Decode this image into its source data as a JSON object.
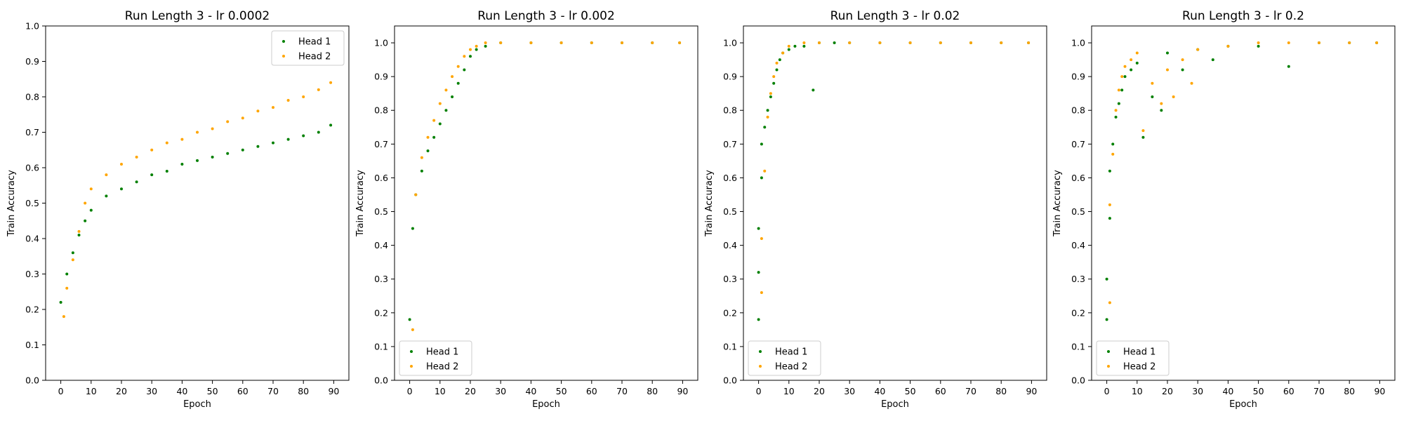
{
  "figure": {
    "background": "#ffffff"
  },
  "colors": {
    "head1": "#008000",
    "head2": "#ffa500"
  },
  "chart_data": [
    {
      "type": "scatter",
      "title": "Run Length 3 - lr 0.0002",
      "xlabel": "Epoch",
      "ylabel": "Train Accuracy",
      "xlim": [
        -5,
        95
      ],
      "ylim": [
        0,
        1
      ],
      "xticks": [
        0,
        10,
        20,
        30,
        40,
        50,
        60,
        70,
        80,
        90
      ],
      "yticks": [
        0.0,
        0.1,
        0.2,
        0.3,
        0.4,
        0.5,
        0.6,
        0.7,
        0.8,
        0.9,
        1.0
      ],
      "legend": {
        "position": "top-right",
        "entries": [
          "Head 1",
          "Head 2"
        ]
      },
      "series": [
        {
          "name": "Head 1",
          "color": "#008000",
          "x": [
            0,
            2,
            4,
            6,
            8,
            10,
            15,
            20,
            25,
            30,
            35,
            40,
            45,
            50,
            55,
            60,
            65,
            70,
            75,
            80,
            85,
            89
          ],
          "y": [
            0.22,
            0.3,
            0.36,
            0.41,
            0.45,
            0.48,
            0.52,
            0.54,
            0.56,
            0.58,
            0.59,
            0.61,
            0.62,
            0.63,
            0.64,
            0.65,
            0.66,
            0.67,
            0.68,
            0.69,
            0.7,
            0.72
          ]
        },
        {
          "name": "Head 2",
          "color": "#ffa500",
          "x": [
            1,
            2,
            4,
            6,
            8,
            10,
            15,
            20,
            25,
            30,
            35,
            40,
            45,
            50,
            55,
            60,
            65,
            70,
            75,
            80,
            85,
            89
          ],
          "y": [
            0.18,
            0.26,
            0.34,
            0.42,
            0.5,
            0.54,
            0.58,
            0.61,
            0.63,
            0.65,
            0.67,
            0.68,
            0.7,
            0.71,
            0.73,
            0.74,
            0.76,
            0.77,
            0.79,
            0.8,
            0.82,
            0.84
          ]
        }
      ]
    },
    {
      "type": "scatter",
      "title": "Run Length 3 - lr 0.002",
      "xlabel": "Epoch",
      "ylabel": "Train Accuracy",
      "xlim": [
        -5,
        95
      ],
      "ylim": [
        0,
        1.05
      ],
      "xticks": [
        0,
        10,
        20,
        30,
        40,
        50,
        60,
        70,
        80,
        90
      ],
      "yticks": [
        0.0,
        0.1,
        0.2,
        0.3,
        0.4,
        0.5,
        0.6,
        0.7,
        0.8,
        0.9,
        1.0
      ],
      "legend": {
        "position": "bottom-left",
        "entries": [
          "Head 1",
          "Head 2"
        ]
      },
      "series": [
        {
          "name": "Head 1",
          "color": "#008000",
          "x": [
            0,
            1,
            2,
            4,
            6,
            8,
            10,
            12,
            14,
            16,
            18,
            20,
            22,
            25,
            30,
            40,
            50,
            60,
            70,
            80,
            89
          ],
          "y": [
            0.18,
            0.45,
            0.55,
            0.62,
            0.68,
            0.72,
            0.76,
            0.8,
            0.84,
            0.88,
            0.92,
            0.96,
            0.98,
            0.99,
            1.0,
            1.0,
            1.0,
            1.0,
            1.0,
            1.0,
            1.0
          ]
        },
        {
          "name": "Head 2",
          "color": "#ffa500",
          "x": [
            1,
            2,
            4,
            6,
            8,
            10,
            12,
            14,
            16,
            18,
            20,
            22,
            25,
            30,
            40,
            50,
            60,
            70,
            80,
            89
          ],
          "y": [
            0.15,
            0.55,
            0.66,
            0.72,
            0.77,
            0.82,
            0.86,
            0.9,
            0.93,
            0.96,
            0.98,
            0.99,
            1.0,
            1.0,
            1.0,
            1.0,
            1.0,
            1.0,
            1.0,
            1.0
          ]
        }
      ]
    },
    {
      "type": "scatter",
      "title": "Run Length 3 - lr 0.02",
      "xlabel": "Epoch",
      "ylabel": "Train Accuracy",
      "xlim": [
        -5,
        95
      ],
      "ylim": [
        0,
        1.05
      ],
      "xticks": [
        0,
        10,
        20,
        30,
        40,
        50,
        60,
        70,
        80,
        90
      ],
      "yticks": [
        0.0,
        0.1,
        0.2,
        0.3,
        0.4,
        0.5,
        0.6,
        0.7,
        0.8,
        0.9,
        1.0
      ],
      "legend": {
        "position": "bottom-left",
        "entries": [
          "Head 1",
          "Head 2"
        ]
      },
      "series": [
        {
          "name": "Head 1",
          "color": "#008000",
          "x": [
            0,
            0,
            0,
            1,
            1,
            2,
            3,
            4,
            5,
            6,
            7,
            8,
            10,
            12,
            15,
            18,
            20,
            25,
            30,
            40,
            50,
            60,
            70,
            80,
            89
          ],
          "y": [
            0.18,
            0.32,
            0.45,
            0.6,
            0.7,
            0.75,
            0.8,
            0.84,
            0.88,
            0.92,
            0.95,
            0.97,
            0.98,
            0.99,
            0.99,
            0.86,
            1.0,
            1.0,
            1.0,
            1.0,
            1.0,
            1.0,
            1.0,
            1.0,
            1.0
          ]
        },
        {
          "name": "Head 2",
          "color": "#ffa500",
          "x": [
            1,
            1,
            2,
            3,
            4,
            5,
            6,
            8,
            10,
            15,
            20,
            30,
            40,
            50,
            60,
            70,
            80,
            89
          ],
          "y": [
            0.26,
            0.42,
            0.62,
            0.78,
            0.85,
            0.9,
            0.94,
            0.97,
            0.99,
            1.0,
            1.0,
            1.0,
            1.0,
            1.0,
            1.0,
            1.0,
            1.0,
            1.0
          ]
        }
      ]
    },
    {
      "type": "scatter",
      "title": "Run Length 3 - lr 0.2",
      "xlabel": "Epoch",
      "ylabel": "Train Accuracy",
      "xlim": [
        -5,
        95
      ],
      "ylim": [
        0,
        1.05
      ],
      "xticks": [
        0,
        10,
        20,
        30,
        40,
        50,
        60,
        70,
        80,
        90
      ],
      "yticks": [
        0.0,
        0.1,
        0.2,
        0.3,
        0.4,
        0.5,
        0.6,
        0.7,
        0.8,
        0.9,
        1.0
      ],
      "legend": {
        "position": "bottom-left",
        "entries": [
          "Head 1",
          "Head 2"
        ]
      },
      "series": [
        {
          "name": "Head 1",
          "color": "#008000",
          "x": [
            0,
            0,
            1,
            1,
            2,
            3,
            4,
            5,
            6,
            8,
            10,
            12,
            15,
            18,
            20,
            25,
            30,
            35,
            40,
            50,
            60,
            70,
            80,
            89
          ],
          "y": [
            0.18,
            0.3,
            0.48,
            0.62,
            0.7,
            0.78,
            0.82,
            0.86,
            0.9,
            0.92,
            0.94,
            0.72,
            0.84,
            0.8,
            0.97,
            0.92,
            0.98,
            0.95,
            0.99,
            0.99,
            0.93,
            1.0,
            1.0,
            1.0
          ]
        },
        {
          "name": "Head 2",
          "color": "#ffa500",
          "x": [
            1,
            1,
            2,
            3,
            4,
            5,
            6,
            8,
            10,
            12,
            15,
            18,
            20,
            22,
            25,
            28,
            30,
            40,
            50,
            60,
            70,
            80,
            89
          ],
          "y": [
            0.23,
            0.52,
            0.67,
            0.8,
            0.86,
            0.9,
            0.93,
            0.95,
            0.97,
            0.74,
            0.88,
            0.82,
            0.92,
            0.84,
            0.95,
            0.88,
            0.98,
            0.99,
            1.0,
            1.0,
            1.0,
            1.0,
            1.0
          ]
        }
      ]
    }
  ]
}
